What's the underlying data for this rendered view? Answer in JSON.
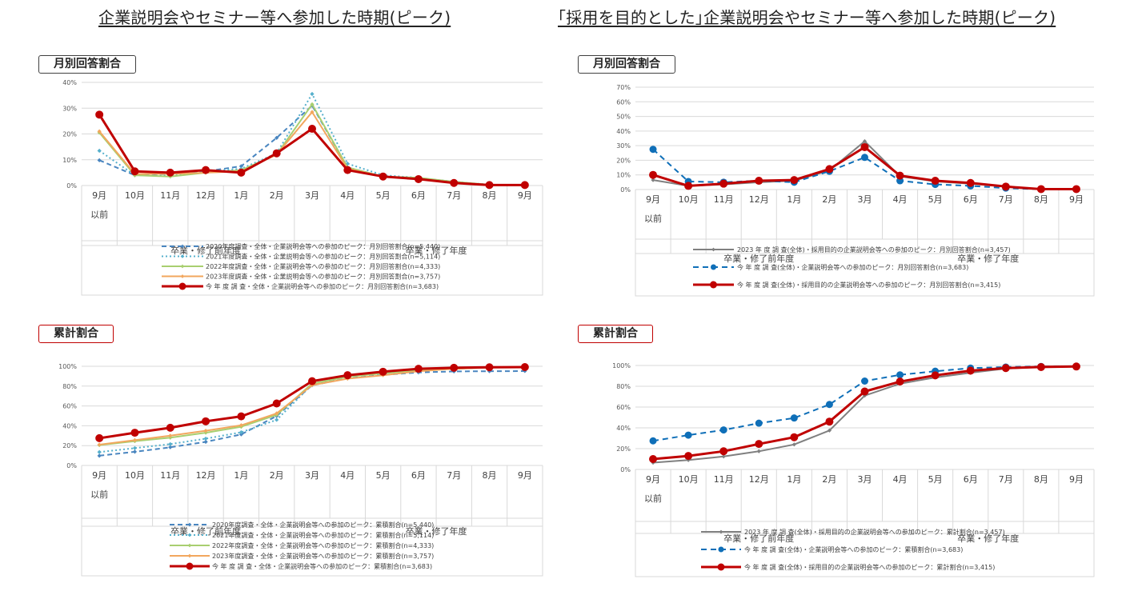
{
  "headings": {
    "left": "企業説明会やセミナー等へ参加した時期(ピーク)",
    "right": "｢採用を目的とした｣企業説明会やセミナー等へ参加した時期(ピーク)"
  },
  "colors": {
    "y2020": "#4a86c0",
    "y2021": "#56b0cc",
    "y2022": "#a8cf70",
    "y2023": "#f2a75e",
    "current": "#c00000",
    "gray2023": "#808080",
    "blue_dash": "#0f6fb8",
    "tag_left_top": "#404040",
    "tag_left_bottom": "#c00000",
    "tag_right_top": "#404040",
    "tag_right_bottom": "#c00000"
  },
  "tags": {
    "left_top": "月別回答割合",
    "left_bottom": "累計割合",
    "right_top": "月別回答割合",
    "right_bottom": "累計割合"
  },
  "chart_data": [
    {
      "id": "left-monthly",
      "type": "line",
      "categories": [
        "9月",
        "10月",
        "11月",
        "12月",
        "1月",
        "2月",
        "3月",
        "4月",
        "5月",
        "6月",
        "7月",
        "8月",
        "9月"
      ],
      "first_category_sub": "以前",
      "group_labels": [
        "卒業・修了前年度",
        "卒業・修了年度"
      ],
      "ylim": [
        0,
        40
      ],
      "ystep": 10,
      "ysuffix": "%",
      "series": [
        {
          "name": "2020年度調査・全体・企業説明会等への参加のピーク：月別回答割合(n=5,440)",
          "values": [
            9.8,
            4,
            4.5,
            5.5,
            7.5,
            18.5,
            31,
            7,
            3.5,
            2.5,
            1,
            0.2,
            0.2
          ],
          "color": "#4a86c0",
          "style": "dashed",
          "marker": "diamond"
        },
        {
          "name": "2021年度調査・全体・企業説明会等への参加のピーク：月別回答割合(n=5,114)",
          "values": [
            13.5,
            4,
            4,
            5.5,
            6.5,
            12.5,
            35.5,
            8.5,
            4,
            3,
            1.5,
            0.3,
            0.2
          ],
          "color": "#56b0cc",
          "style": "dotted",
          "marker": "diamond"
        },
        {
          "name": "2022年度調査・全体・企業説明会等への参加のピーク：月別回答割合(n=4,333)",
          "values": [
            20.5,
            4,
            3.5,
            5,
            6,
            12,
            31.5,
            7,
            3.5,
            3,
            1.5,
            0.3,
            0.2
          ],
          "color": "#a8cf70",
          "style": "solid",
          "marker": "diamond"
        },
        {
          "name": "2023年度調査・全体・企業説明会等への参加のピーク：月別回答割合(n=3,757)",
          "values": [
            21,
            4.5,
            4.5,
            5,
            5.5,
            12,
            28.5,
            6.5,
            3.5,
            2.5,
            1,
            0.3,
            0.2
          ],
          "color": "#f2a75e",
          "style": "solid",
          "marker": "diamond"
        },
        {
          "name": "今 年 度 調 査・全体・企業説明会等への参加のピーク：月別回答割合(n=3,683)",
          "values": [
            27.5,
            5.5,
            5,
            6,
            5,
            12.5,
            22,
            6,
            3.5,
            2.5,
            1,
            0.2,
            0.2
          ],
          "color": "#c00000",
          "style": "solid",
          "marker": "circle",
          "bold": true
        }
      ]
    },
    {
      "id": "right-monthly",
      "type": "line",
      "categories": [
        "9月",
        "10月",
        "11月",
        "12月",
        "1月",
        "2月",
        "3月",
        "4月",
        "5月",
        "6月",
        "7月",
        "8月",
        "9月"
      ],
      "first_category_sub": "以前",
      "group_labels": [
        "卒業・修了前年度",
        "卒業・修了年度"
      ],
      "ylim": [
        0,
        70
      ],
      "ystep": 10,
      "ysuffix": "%",
      "series": [
        {
          "name": "2023 年 度 調 査(全体)・採用目的の企業説明会等への参加のピーク：月別回答割合(n=3,457)",
          "values": [
            6.5,
            2.5,
            3.5,
            5,
            6,
            13,
            33,
            9,
            5.5,
            4,
            2,
            0.3,
            0.3
          ],
          "color": "#808080",
          "style": "solid",
          "marker": "diamond"
        },
        {
          "name": "今 年 度 調 査(全体)・企業説明会等への参加のピーク：月別回答割合(n=3,683)",
          "values": [
            27.5,
            5.5,
            5,
            6,
            5,
            12.5,
            22,
            6,
            3.5,
            2.5,
            1,
            0.2,
            0.2
          ],
          "color": "#0f6fb8",
          "style": "dashed",
          "marker": "circle"
        },
        {
          "name": "今 年 度 調 査(全体)・採用目的の企業説明会等への参加のピーク：月別回答割合(n=3,415)",
          "values": [
            10,
            2.5,
            4,
            6,
            6.5,
            14,
            29,
            9.5,
            6,
            4.5,
            2,
            0.3,
            0.3
          ],
          "color": "#c00000",
          "style": "solid",
          "marker": "circle",
          "bold": true
        }
      ]
    },
    {
      "id": "left-cumulative",
      "type": "line",
      "categories": [
        "9月",
        "10月",
        "11月",
        "12月",
        "1月",
        "2月",
        "3月",
        "4月",
        "5月",
        "6月",
        "7月",
        "8月",
        "9月"
      ],
      "first_category_sub": "以前",
      "group_labels": [
        "卒業・修了前年度",
        "卒業・修了年度"
      ],
      "ylim": [
        0,
        100
      ],
      "ystep": 20,
      "ysuffix": "%",
      "series": [
        {
          "name": "2020年度調査・全体・企業説明会等への参加のピーク：累積割合(n=5,440)",
          "values": [
            9.8,
            13.8,
            18.3,
            23.8,
            31.3,
            49.8,
            80.8,
            87.8,
            91.3,
            93.8,
            94.8,
            95,
            95.2
          ],
          "color": "#4a86c0",
          "style": "dashed",
          "marker": "diamond"
        },
        {
          "name": "2021年度調査・全体・企業説明会等への参加のピーク：累積割合(n=5,114)",
          "values": [
            13.5,
            17.5,
            21.5,
            27,
            33.5,
            46,
            81.5,
            90,
            94,
            97,
            98.5,
            98.8,
            99
          ],
          "color": "#56b0cc",
          "style": "dotted",
          "marker": "diamond"
        },
        {
          "name": "2022年度調査・全体・企業説明会等への参加のピーク：累積割合(n=4,333)",
          "values": [
            20.5,
            24.5,
            28,
            33,
            39,
            51,
            82.5,
            89.5,
            93,
            96,
            97.5,
            98.8,
            99
          ],
          "color": "#a8cf70",
          "style": "solid",
          "marker": "diamond"
        },
        {
          "name": "2023年度調査・全体・企業説明会等への参加のピーク：累積割合(n=3,757)",
          "values": [
            21,
            25.5,
            30,
            35,
            40.5,
            52.5,
            81,
            87.5,
            91,
            95,
            97.5,
            98.8,
            99
          ],
          "color": "#f2a75e",
          "style": "solid",
          "marker": "diamond"
        },
        {
          "name": "今 年 度 調 査・全体・企業説明会等への参加のピーク：累積割合(n=3,683)",
          "values": [
            27.5,
            33,
            38,
            44.5,
            49.5,
            62.5,
            85,
            91,
            94.5,
            97.5,
            98.5,
            99,
            99.2
          ],
          "color": "#c00000",
          "style": "solid",
          "marker": "circle",
          "bold": true
        }
      ]
    },
    {
      "id": "right-cumulative",
      "type": "line",
      "categories": [
        "9月",
        "10月",
        "11月",
        "12月",
        "1月",
        "2月",
        "3月",
        "4月",
        "5月",
        "6月",
        "7月",
        "8月",
        "9月"
      ],
      "first_category_sub": "以前",
      "group_labels": [
        "卒業・修了前年度",
        "卒業・修了年度"
      ],
      "ylim": [
        0,
        100
      ],
      "ystep": 20,
      "ysuffix": "%",
      "series": [
        {
          "name": "2023 年 度 調 査(全体)・採用目的の企業説明会等への参加のピーク：累計割合(n=3,457)",
          "values": [
            6.5,
            9,
            12.5,
            17.5,
            24,
            37.5,
            71,
            82.5,
            88.5,
            93,
            97,
            98.5,
            99
          ],
          "color": "#808080",
          "style": "solid",
          "marker": "diamond"
        },
        {
          "name": "今 年 度 調 査(全体)・企業説明会等への参加のピーク：累積割合(n=3,683)",
          "values": [
            27.5,
            33,
            38,
            44.5,
            49.5,
            62.5,
            85,
            91,
            94.5,
            97.5,
            98.5,
            99,
            99.2
          ],
          "color": "#0f6fb8",
          "style": "dashed",
          "marker": "circle"
        },
        {
          "name": "今 年 度 調 査(全体)・採用目的の企業説明会等への参加のピーク：累計割合(n=3,415)",
          "values": [
            10,
            13,
            17.5,
            24.5,
            31,
            46,
            75,
            84.5,
            90.5,
            95,
            97.5,
            98.5,
            99
          ],
          "color": "#c00000",
          "style": "solid",
          "marker": "circle",
          "bold": true
        }
      ]
    }
  ]
}
